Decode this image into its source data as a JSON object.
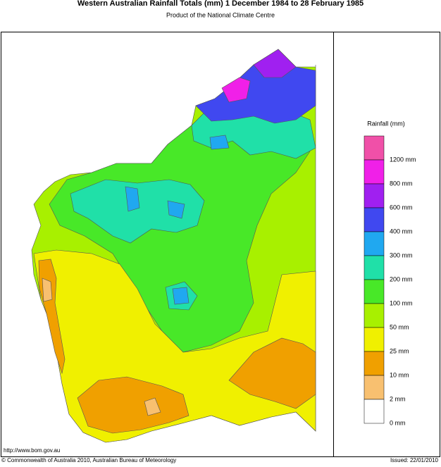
{
  "header": {
    "title": "Western Australian Rainfall Totals (mm) 1 December 1984 to 28 February 1985",
    "subtitle": "Product of the National Climate Centre"
  },
  "legend": {
    "title": "Rainfall (mm)",
    "top_color": "#f050a8",
    "items": [
      {
        "label": "1200 mm",
        "color": "#f020e8"
      },
      {
        "label": "800 mm",
        "color": "#a020f0"
      },
      {
        "label": "600 mm",
        "color": "#4048f0"
      },
      {
        "label": "400 mm",
        "color": "#20a8f0"
      },
      {
        "label": "300 mm",
        "color": "#20e0a8"
      },
      {
        "label": "200 mm",
        "color": "#48e828"
      },
      {
        "label": "100 mm",
        "color": "#a8f000"
      },
      {
        "label": "50 mm",
        "color": "#f0f000"
      },
      {
        "label": "25 mm",
        "color": "#f0a000"
      },
      {
        "label": "10 mm",
        "color": "#f8c070"
      },
      {
        "label": "2 mm",
        "color": "#ffffff"
      },
      {
        "label": "0 mm",
        "color": null
      }
    ]
  },
  "footer": {
    "url": "http://www.bom.gov.au",
    "copyright": "© Commonwealth of Australia 2010, Australian Bureau of Meteorology",
    "issued": "Issued: 22/01/2010"
  }
}
